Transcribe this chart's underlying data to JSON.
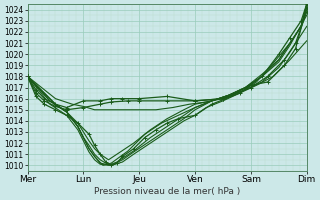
{
  "xlabel": "Pression niveau de la mer( hPa )",
  "background_color": "#cce8e8",
  "grid_color_major": "#99ccbb",
  "grid_color_minor": "#bbddcc",
  "line_color": "#1a5c1a",
  "ylim": [
    1009.5,
    1024.5
  ],
  "yticks": [
    1010,
    1011,
    1012,
    1013,
    1014,
    1015,
    1016,
    1017,
    1018,
    1019,
    1020,
    1021,
    1022,
    1023,
    1024
  ],
  "x_tick_labels": [
    "Mer",
    "Lun",
    "Jeu",
    "Ven",
    "Sam",
    "Dim"
  ],
  "x_tick_positions": [
    0,
    1,
    2,
    3,
    4,
    5
  ],
  "xlim": [
    0,
    5
  ],
  "figsize": [
    3.2,
    2.0
  ],
  "dpi": 100,
  "series": [
    {
      "points": [
        [
          0,
          1018
        ],
        [
          0.15,
          1016.8
        ],
        [
          0.3,
          1016.0
        ],
        [
          0.5,
          1015.5
        ],
        [
          0.7,
          1015.2
        ],
        [
          1.0,
          1015.8
        ],
        [
          1.3,
          1015.8
        ],
        [
          1.5,
          1016.0
        ],
        [
          1.7,
          1016.0
        ],
        [
          2.0,
          1016.0
        ],
        [
          2.5,
          1016.2
        ],
        [
          3.0,
          1015.8
        ],
        [
          3.5,
          1016.0
        ],
        [
          4.0,
          1017.2
        ],
        [
          4.3,
          1017.5
        ],
        [
          4.6,
          1019.0
        ],
        [
          4.8,
          1020.5
        ],
        [
          5.0,
          1024.2
        ]
      ],
      "style": "dotted_marker",
      "linewidth": 0.9
    },
    {
      "points": [
        [
          0,
          1018
        ],
        [
          0.15,
          1016.5
        ],
        [
          0.3,
          1015.8
        ],
        [
          0.5,
          1015.3
        ],
        [
          0.7,
          1015.0
        ],
        [
          1.0,
          1015.2
        ],
        [
          1.3,
          1015.5
        ],
        [
          1.5,
          1015.7
        ],
        [
          1.8,
          1015.8
        ],
        [
          2.0,
          1015.8
        ],
        [
          2.5,
          1015.8
        ],
        [
          3.0,
          1015.8
        ],
        [
          3.5,
          1016.0
        ],
        [
          4.0,
          1017.0
        ],
        [
          4.3,
          1018.0
        ],
        [
          4.6,
          1019.5
        ],
        [
          4.8,
          1021.0
        ],
        [
          5.0,
          1023.8
        ]
      ],
      "style": "dotted_marker",
      "linewidth": 0.9
    },
    {
      "points": [
        [
          0,
          1018
        ],
        [
          0.15,
          1016.2
        ],
        [
          0.3,
          1015.5
        ],
        [
          0.5,
          1015.0
        ],
        [
          0.7,
          1014.5
        ],
        [
          0.9,
          1013.8
        ],
        [
          1.1,
          1012.8
        ],
        [
          1.2,
          1011.8
        ],
        [
          1.3,
          1011.0
        ],
        [
          1.4,
          1010.3
        ],
        [
          1.5,
          1010.0
        ],
        [
          1.6,
          1010.2
        ],
        [
          1.7,
          1010.8
        ],
        [
          1.9,
          1011.5
        ],
        [
          2.1,
          1012.5
        ],
        [
          2.3,
          1013.2
        ],
        [
          2.5,
          1013.8
        ],
        [
          2.7,
          1014.2
        ],
        [
          3.0,
          1014.5
        ],
        [
          3.3,
          1015.5
        ],
        [
          3.8,
          1016.5
        ],
        [
          4.2,
          1018.0
        ],
        [
          4.5,
          1020.0
        ],
        [
          4.7,
          1021.5
        ],
        [
          4.9,
          1023.0
        ],
        [
          5.0,
          1024.5
        ]
      ],
      "style": "dotted_marker",
      "linewidth": 0.9
    },
    {
      "points": [
        [
          0,
          1018
        ],
        [
          0.5,
          1015.5
        ],
        [
          0.7,
          1014.8
        ],
        [
          0.9,
          1013.5
        ],
        [
          1.0,
          1012.5
        ],
        [
          1.1,
          1011.8
        ],
        [
          1.2,
          1011.0
        ],
        [
          1.3,
          1010.5
        ],
        [
          1.4,
          1010.2
        ],
        [
          1.5,
          1010.0
        ],
        [
          1.7,
          1010.3
        ],
        [
          1.9,
          1011.0
        ],
        [
          2.2,
          1012.0
        ],
        [
          2.5,
          1013.0
        ],
        [
          2.8,
          1014.0
        ],
        [
          3.0,
          1014.5
        ],
        [
          3.2,
          1015.2
        ],
        [
          3.5,
          1015.8
        ],
        [
          3.8,
          1016.5
        ],
        [
          4.1,
          1017.5
        ],
        [
          4.4,
          1019.2
        ],
        [
          4.7,
          1021.0
        ],
        [
          4.9,
          1022.5
        ],
        [
          5.0,
          1024.5
        ]
      ],
      "style": "solid",
      "linewidth": 0.8
    },
    {
      "points": [
        [
          0,
          1018
        ],
        [
          0.5,
          1015.5
        ],
        [
          0.7,
          1014.8
        ],
        [
          0.9,
          1013.5
        ],
        [
          1.0,
          1012.5
        ],
        [
          1.1,
          1011.5
        ],
        [
          1.2,
          1010.8
        ],
        [
          1.3,
          1010.2
        ],
        [
          1.5,
          1010.0
        ],
        [
          1.7,
          1010.5
        ],
        [
          1.9,
          1011.2
        ],
        [
          2.2,
          1012.2
        ],
        [
          2.5,
          1013.2
        ],
        [
          2.8,
          1014.2
        ],
        [
          3.0,
          1015.0
        ],
        [
          3.3,
          1015.8
        ],
        [
          3.6,
          1016.3
        ],
        [
          3.9,
          1017.0
        ],
        [
          4.2,
          1018.2
        ],
        [
          4.5,
          1019.5
        ],
        [
          4.7,
          1021.0
        ],
        [
          4.9,
          1022.5
        ],
        [
          5.0,
          1024.5
        ]
      ],
      "style": "solid",
      "linewidth": 0.8
    },
    {
      "points": [
        [
          0,
          1018
        ],
        [
          0.4,
          1015.5
        ],
        [
          0.7,
          1014.5
        ],
        [
          0.9,
          1013.2
        ],
        [
          1.0,
          1012.2
        ],
        [
          1.1,
          1011.2
        ],
        [
          1.2,
          1010.5
        ],
        [
          1.3,
          1010.1
        ],
        [
          1.45,
          1010.0
        ],
        [
          1.6,
          1010.3
        ],
        [
          1.9,
          1011.3
        ],
        [
          2.2,
          1012.5
        ],
        [
          2.5,
          1013.5
        ],
        [
          2.8,
          1014.5
        ],
        [
          3.0,
          1015.2
        ],
        [
          3.3,
          1015.8
        ],
        [
          3.6,
          1016.3
        ],
        [
          3.9,
          1017.0
        ],
        [
          4.2,
          1018.0
        ],
        [
          4.5,
          1019.5
        ],
        [
          4.7,
          1021.0
        ],
        [
          4.9,
          1022.5
        ],
        [
          5.0,
          1024.0
        ]
      ],
      "style": "solid",
      "linewidth": 0.8
    },
    {
      "points": [
        [
          0,
          1018
        ],
        [
          0.4,
          1015.8
        ],
        [
          0.7,
          1014.8
        ],
        [
          0.9,
          1013.5
        ],
        [
          1.0,
          1012.5
        ],
        [
          1.1,
          1011.5
        ],
        [
          1.2,
          1010.8
        ],
        [
          1.35,
          1010.0
        ],
        [
          1.5,
          1010.2
        ],
        [
          1.8,
          1011.3
        ],
        [
          2.1,
          1012.8
        ],
        [
          2.4,
          1013.8
        ],
        [
          2.7,
          1014.5
        ],
        [
          3.0,
          1015.2
        ],
        [
          3.3,
          1015.8
        ],
        [
          3.6,
          1016.3
        ],
        [
          3.9,
          1017.0
        ],
        [
          4.2,
          1018.0
        ],
        [
          4.5,
          1019.3
        ],
        [
          4.7,
          1020.8
        ],
        [
          5.0,
          1023.5
        ]
      ],
      "style": "solid",
      "linewidth": 0.8
    },
    {
      "points": [
        [
          0,
          1018
        ],
        [
          0.4,
          1015.8
        ],
        [
          0.7,
          1014.8
        ],
        [
          0.9,
          1013.8
        ],
        [
          1.0,
          1013.0
        ],
        [
          1.1,
          1012.2
        ],
        [
          1.2,
          1011.5
        ],
        [
          1.3,
          1011.0
        ],
        [
          1.45,
          1010.5
        ],
        [
          1.6,
          1011.0
        ],
        [
          1.9,
          1012.0
        ],
        [
          2.2,
          1013.2
        ],
        [
          2.5,
          1014.2
        ],
        [
          2.8,
          1015.0
        ],
        [
          3.0,
          1015.5
        ],
        [
          3.3,
          1015.8
        ],
        [
          3.6,
          1016.3
        ],
        [
          3.9,
          1016.8
        ],
        [
          4.2,
          1017.5
        ],
        [
          4.5,
          1018.8
        ],
        [
          4.7,
          1020.2
        ],
        [
          5.0,
          1022.5
        ]
      ],
      "style": "solid",
      "linewidth": 0.8
    },
    {
      "points": [
        [
          0,
          1018
        ],
        [
          0.5,
          1016.0
        ],
        [
          0.8,
          1015.5
        ],
        [
          1.0,
          1015.3
        ],
        [
          1.2,
          1015.0
        ],
        [
          1.5,
          1015.0
        ],
        [
          1.8,
          1015.0
        ],
        [
          2.0,
          1015.0
        ],
        [
          2.3,
          1015.0
        ],
        [
          2.6,
          1015.2
        ],
        [
          2.9,
          1015.5
        ],
        [
          3.2,
          1015.7
        ],
        [
          3.5,
          1016.0
        ],
        [
          3.8,
          1016.5
        ],
        [
          4.1,
          1017.2
        ],
        [
          4.4,
          1018.0
        ],
        [
          4.7,
          1019.5
        ],
        [
          5.0,
          1021.2
        ]
      ],
      "style": "solid",
      "linewidth": 0.8
    }
  ]
}
